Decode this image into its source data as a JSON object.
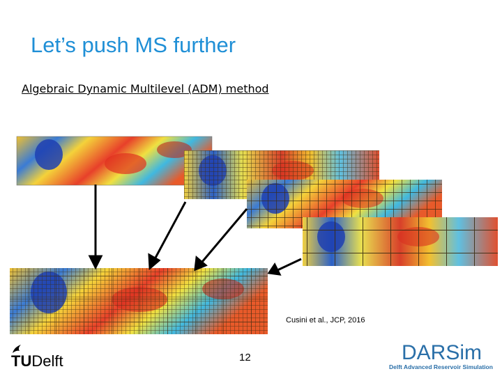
{
  "slide": {
    "title": "Let’s push MS further",
    "subtitle": "Algebraic Dynamic Multilevel (ADM) method",
    "citation": "Cusini et al., JCP, 2016",
    "page_number": "12"
  },
  "logos": {
    "tudelft": "TUDelft",
    "darsim_title": "DARSim",
    "darsim_subtitle": "Delft Advanced Reservoir Simulation"
  },
  "colors": {
    "title": "#1f8fd6",
    "darsim": "#2a6fa8",
    "grid": "#3a2a10",
    "arrow": "#000000"
  }
}
